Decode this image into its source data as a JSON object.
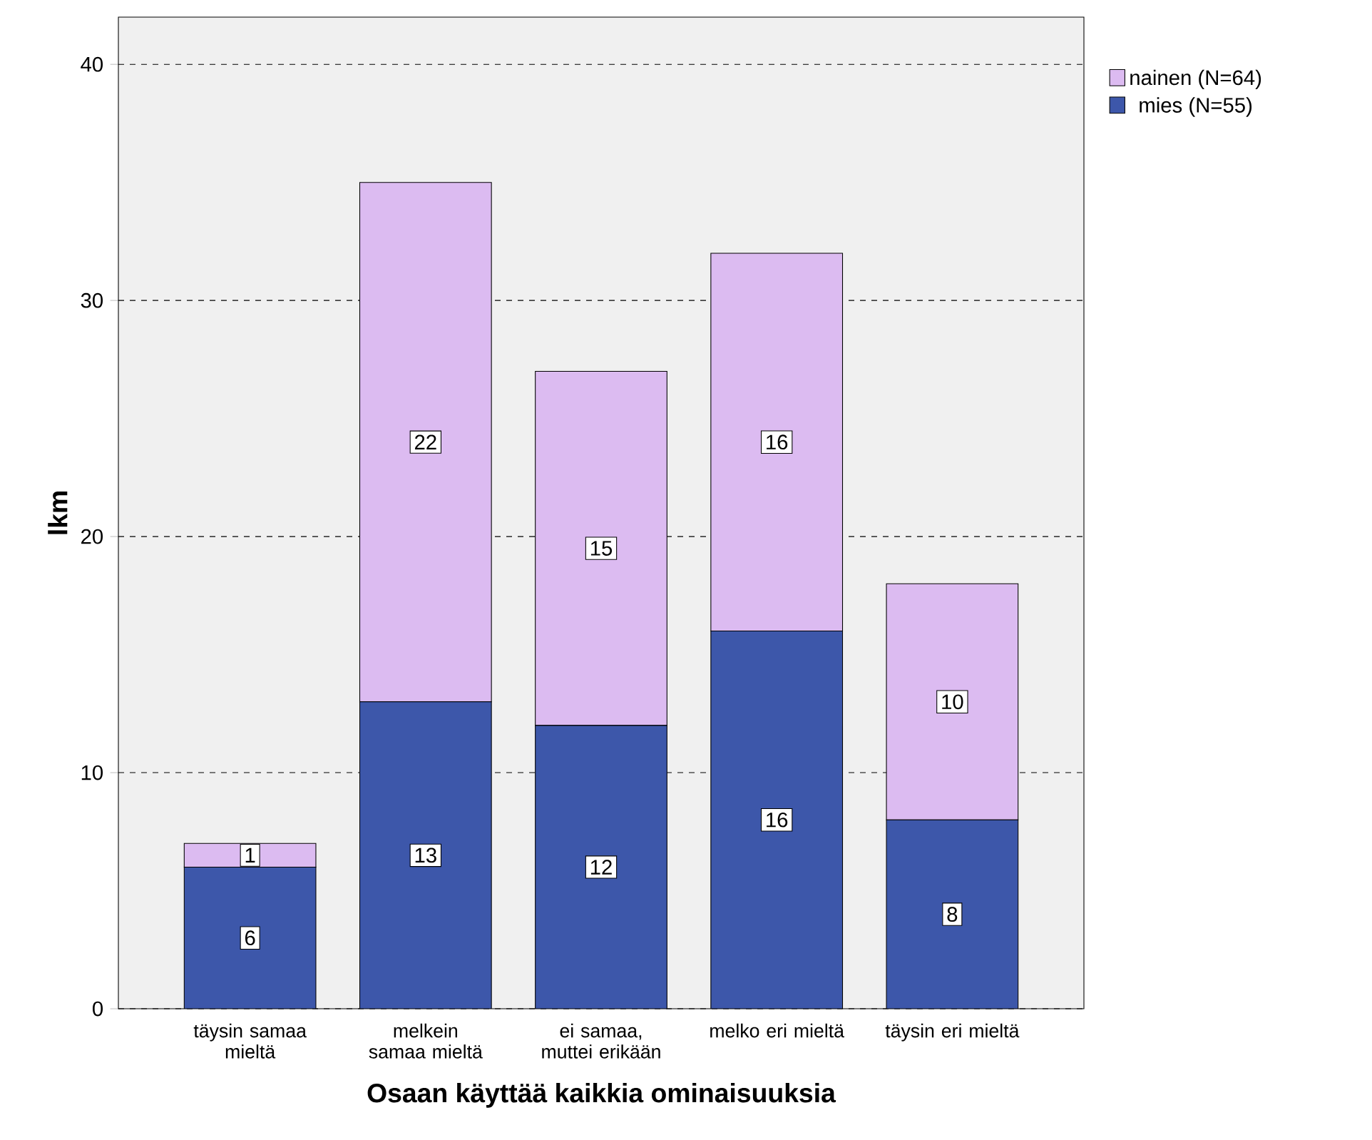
{
  "chart_data": {
    "type": "bar",
    "stacked": true,
    "xlabel": "Osaan käyttää kaikkia ominaisuuksia",
    "ylabel": "lkm",
    "categories": [
      "täysin samaa mieltä",
      "melkein samaa mieltä",
      "ei samaa, muttei erikään",
      "melko eri mieltä",
      "täysin eri mieltä"
    ],
    "series": [
      {
        "name": "mies (N=55)",
        "color": "#3d57aa",
        "values": [
          6,
          13,
          12,
          16,
          8
        ]
      },
      {
        "name": "nainen (N=64)",
        "color": "#dcbbf1",
        "values": [
          1,
          22,
          15,
          16,
          10
        ]
      }
    ],
    "ylim": [
      0,
      42
    ],
    "yticks": [
      0,
      10,
      20,
      30,
      40
    ],
    "grid": "y",
    "legend": "top right",
    "data_labels": true
  }
}
